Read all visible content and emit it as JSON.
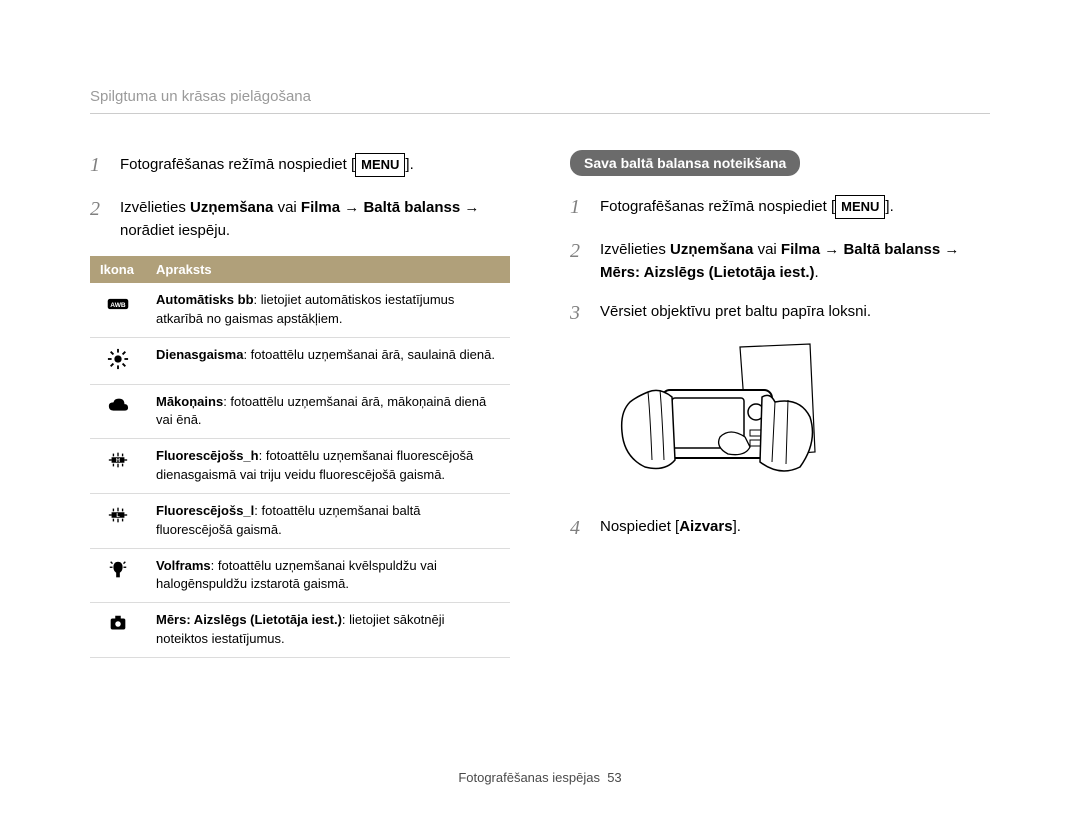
{
  "header": "Spilgtuma un krāsas pielāgošana",
  "left": {
    "step1_a": "Fotografēšanas režīmā nospiediet [",
    "step1_menu": "MENU",
    "step1_b": "].",
    "step2_a": "Izvēlieties ",
    "step2_bold1": "Uzņemšana",
    "step2_mid1": " vai ",
    "step2_bold2": "Filma",
    "step2_arrow1": " → ",
    "step2_bold3": "Baltā balanss",
    "step2_arrow2": " →",
    "step2_tail": "norādiet iespēju.",
    "th_icon": "Ikona",
    "th_desc": "Apraksts",
    "rows": [
      {
        "bold": "Automātisks bb",
        "text": ": lietojiet automātiskos iestatījumus atkarībā no gaismas apstākļiem.",
        "icon": "awb"
      },
      {
        "bold": "Dienasgaisma",
        "text": ": fotoattēlu uzņemšanai ārā, saulainā dienā.",
        "icon": "sun"
      },
      {
        "bold": "Mākoņains",
        "text": ": fotoattēlu uzņemšanai ārā, mākoņainā dienā vai ēnā.",
        "icon": "cloud"
      },
      {
        "bold": "Fluorescējošs_h",
        "text": ": fotoattēlu uzņemšanai fluorescējošā dienasgaismā vai triju veidu fluorescējošā gaismā.",
        "icon": "fluo_h"
      },
      {
        "bold": "Fluorescējošs_l",
        "text": ": fotoattēlu uzņemšanai baltā fluorescējošā gaismā.",
        "icon": "fluo_l"
      },
      {
        "bold": "Volframs",
        "text": ": fotoattēlu uzņemšanai kvēlspuldžu vai halogēnspuldžu izstarotā gaismā.",
        "icon": "tungsten"
      },
      {
        "bold": "Mērs: Aizslēgs (Lietotāja iest.)",
        "text": ": lietojiet sākotnēji noteiktos iestatījumus.",
        "icon": "custom"
      }
    ]
  },
  "right": {
    "pill": "Sava baltā balansa noteikšana",
    "step1_a": "Fotografēšanas režīmā nospiediet [",
    "step1_menu": "MENU",
    "step1_b": "].",
    "step2_a": "Izvēlieties ",
    "step2_bold1": "Uzņemšana",
    "step2_mid1": " vai ",
    "step2_bold2": "Filma",
    "step2_arrow1": " → ",
    "step2_bold3": "Baltā balanss",
    "step2_arrow2": " →",
    "step2_line2": "Mērs: Aizslēgs (Lietotāja iest.)",
    "step2_period": ".",
    "step3": "Vērsiet objektīvu pret baltu papīra loksni.",
    "step4_a": "Nospiediet [",
    "step4_bold": "Aizvars",
    "step4_b": "]."
  },
  "footer_a": "Fotografēšanas iespējas",
  "footer_pg": "53"
}
